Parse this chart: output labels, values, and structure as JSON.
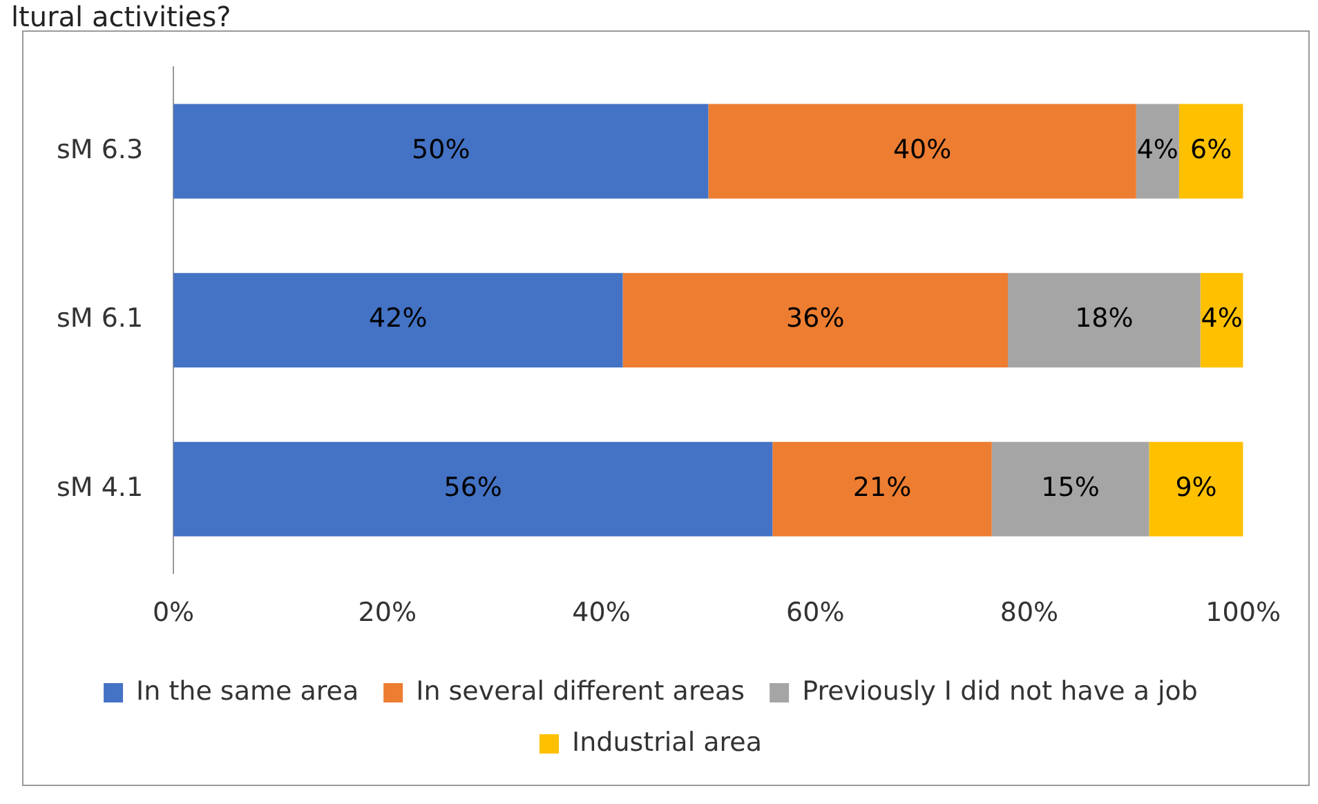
{
  "chart_data": {
    "type": "bar",
    "title": "ltural activities?",
    "orientation": "horizontal",
    "stacked": true,
    "categories": [
      "sM 6.3",
      "sM 6.1",
      "sM 4.1"
    ],
    "series": [
      {
        "name": "In the same area",
        "color": "#4472c4",
        "values": [
          50,
          42,
          56
        ],
        "value_labels": [
          "50%",
          "42%",
          "56%"
        ]
      },
      {
        "name": "In several different areas",
        "color": "#ed7d31",
        "values": [
          40,
          36,
          20.5
        ],
        "value_labels": [
          "40%",
          "36%",
          "21%"
        ]
      },
      {
        "name": "Previously I did not have a job",
        "color": "#a5a5a5",
        "values": [
          4,
          18,
          14.7
        ],
        "value_labels": [
          "4%",
          "18%",
          "15%"
        ]
      },
      {
        "name": "Industrial area",
        "color": "#ffc000",
        "values": [
          6,
          4,
          8.8
        ],
        "value_labels": [
          "6%",
          "4%",
          "9%"
        ]
      }
    ],
    "xlim": [
      0,
      100
    ],
    "xticks": [
      {
        "value": 0,
        "label": "0%"
      },
      {
        "value": 20,
        "label": "20%"
      },
      {
        "value": 40,
        "label": "40%"
      },
      {
        "value": 60,
        "label": "60%"
      },
      {
        "value": 80,
        "label": "80%"
      },
      {
        "value": 100,
        "label": "100%"
      }
    ],
    "grid": false,
    "legend": "bottom"
  }
}
